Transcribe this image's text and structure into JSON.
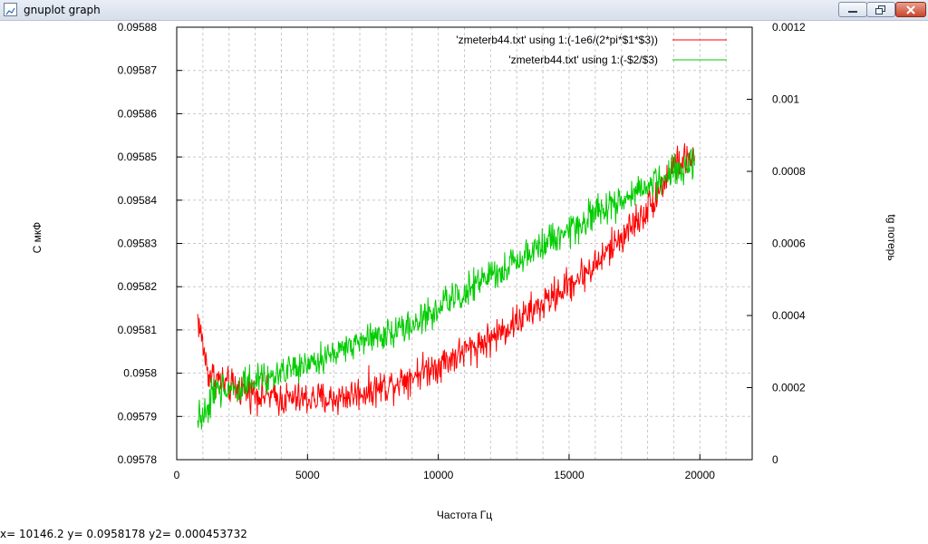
{
  "window": {
    "title": "gnuplot graph"
  },
  "status_line": "x= 10146.2 y= 0.0958178 y2= 0.000453732",
  "chart_data": {
    "type": "line",
    "xlabel": "Частота Гц",
    "ylabel": "С мкФ",
    "y2label": "tg потерь",
    "xlim": [
      0,
      22000
    ],
    "ylim": [
      0.09578,
      0.09588
    ],
    "y2lim": [
      0,
      0.0012
    ],
    "x_ticks": [
      "0",
      "5000",
      "10000",
      "15000",
      "20000"
    ],
    "y_ticks": [
      "0.09578",
      "0.09579",
      "0.0958",
      "0.09581",
      "0.09582",
      "0.09583",
      "0.09584",
      "0.09585",
      "0.09586",
      "0.09587",
      "0.09588"
    ],
    "y2_ticks": [
      "0",
      "0.0002",
      "0.0004",
      "0.0006",
      "0.0008",
      "0.001",
      "0.0012"
    ],
    "grid": true,
    "legend_position": "top-right",
    "series": [
      {
        "name": "'zmeterb44.txt' using 1:(-1e6/(2*pi*$1*$3))",
        "axis": "y1",
        "color": "#ff0000",
        "x_range": [
          800,
          19800
        ],
        "trend": [
          [
            800,
            0.095813
          ],
          [
            1200,
            0.0958
          ],
          [
            2000,
            0.095797
          ],
          [
            4000,
            0.095794
          ],
          [
            6000,
            0.095794
          ],
          [
            8000,
            0.095797
          ],
          [
            10000,
            0.095802
          ],
          [
            12000,
            0.095808
          ],
          [
            14000,
            0.095816
          ],
          [
            16000,
            0.095825
          ],
          [
            18000,
            0.095838
          ],
          [
            19000,
            0.095848
          ],
          [
            19800,
            0.09585
          ]
        ],
        "noise": 6e-06
      },
      {
        "name": "'zmeterb44.txt' using 1:(-$2/$3)",
        "axis": "y2",
        "color": "#00cc00",
        "x_range": [
          800,
          19800
        ],
        "trend": [
          [
            800,
            0.0001
          ],
          [
            1500,
            0.00019
          ],
          [
            3000,
            0.00022
          ],
          [
            5000,
            0.00026
          ],
          [
            7000,
            0.00033
          ],
          [
            9000,
            0.00037
          ],
          [
            11000,
            0.00047
          ],
          [
            13000,
            0.00055
          ],
          [
            15000,
            0.00064
          ],
          [
            17000,
            0.00072
          ],
          [
            19000,
            0.0008
          ],
          [
            19800,
            0.00081
          ]
        ],
        "noise": 7e-05
      }
    ]
  }
}
